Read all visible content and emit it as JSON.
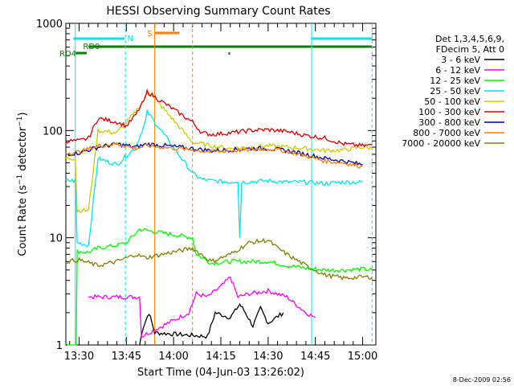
{
  "chart_data": {
    "type": "line",
    "title": "HESSI Observing Summary Count Rates",
    "xlabel": "Start Time (04-Jun-03 13:26:02)",
    "ylabel_parts": {
      "pre": "Count Rate (s",
      "sup1": "−1",
      "mid": " detector",
      "sup2": "−1",
      "post": ")"
    },
    "yscale": "log",
    "ylim": [
      1,
      1000
    ],
    "xlim_minutes": [
      13.43,
      15.07
    ],
    "x_ticks": [
      {
        "label": "13:30",
        "value": 13.5
      },
      {
        "label": "13:45",
        "value": 13.75
      },
      {
        "label": "14:00",
        "value": 14.0
      },
      {
        "label": "14:15",
        "value": 14.25
      },
      {
        "label": "14:30",
        "value": 14.5
      },
      {
        "label": "14:45",
        "value": 14.75
      },
      {
        "label": "15:00",
        "value": 15.0
      }
    ],
    "y_ticks": [
      {
        "label": "1",
        "value": 1
      },
      {
        "label": "10",
        "value": 10
      },
      {
        "label": "100",
        "value": 100
      },
      {
        "label": "1000",
        "value": 1000
      }
    ],
    "legend_header": [
      "Det 1,3,4,5,6,9,",
      "FDecim 5, Att 0"
    ],
    "legend_position": "right",
    "flags": [
      {
        "label": "N",
        "color": "#00e5ee"
      },
      {
        "label": "S",
        "color": "#ff7f00"
      },
      {
        "label": "RD0",
        "color": "#008000"
      },
      {
        "label": "RD4",
        "color": "#008000"
      }
    ],
    "timestamp": "8-Dec-2009 02:56",
    "series": [
      {
        "name": "3 - 6 keV",
        "color": "#000000",
        "points": [
          [
            13.82,
            1
          ],
          [
            13.84,
            1.5
          ],
          [
            13.87,
            2
          ],
          [
            13.9,
            1.3
          ],
          [
            14.18,
            1.2
          ],
          [
            14.22,
            2
          ],
          [
            14.3,
            1.8
          ],
          [
            14.35,
            2.4
          ],
          [
            14.38,
            2
          ],
          [
            14.42,
            1.5
          ],
          [
            14.46,
            2.2
          ],
          [
            14.5,
            1.6
          ],
          [
            14.58,
            2
          ]
        ]
      },
      {
        "name": "6 - 12 keV",
        "color": "#ff00ff",
        "points": [
          [
            13.55,
            2.8
          ],
          [
            13.65,
            2.8
          ],
          [
            13.75,
            2.8
          ],
          [
            13.82,
            2.8
          ],
          [
            13.83,
            1.2
          ],
          [
            14.08,
            2
          ],
          [
            14.12,
            3
          ],
          [
            14.18,
            2.8
          ],
          [
            14.2,
            3
          ],
          [
            14.25,
            3.5
          ],
          [
            14.3,
            4.3
          ],
          [
            14.34,
            2.8
          ],
          [
            14.4,
            3
          ],
          [
            14.5,
            3.2
          ],
          [
            14.6,
            2.8
          ],
          [
            14.7,
            2
          ],
          [
            14.75,
            1.8
          ]
        ]
      },
      {
        "name": "12 - 25 keV",
        "color": "#00ff00",
        "points": [
          [
            13.43,
            1
          ],
          [
            13.485,
            1
          ],
          [
            13.49,
            7.5
          ],
          [
            13.55,
            7.3
          ],
          [
            13.6,
            8
          ],
          [
            13.7,
            8.5
          ],
          [
            13.75,
            9
          ],
          [
            13.8,
            11
          ],
          [
            13.82,
            12
          ],
          [
            14.1,
            10
          ],
          [
            14.12,
            7
          ],
          [
            14.2,
            5.8
          ],
          [
            14.3,
            6
          ],
          [
            14.4,
            6
          ],
          [
            14.5,
            6
          ],
          [
            14.6,
            5.5
          ],
          [
            14.7,
            5.2
          ],
          [
            14.8,
            5
          ],
          [
            14.9,
            5
          ],
          [
            15.0,
            5.1
          ],
          [
            15.05,
            5
          ]
        ]
      },
      {
        "name": "25 - 50 keV",
        "color": "#00e5ee",
        "points": [
          [
            13.43,
            34
          ],
          [
            13.48,
            34
          ],
          [
            13.49,
            9
          ],
          [
            13.55,
            8.5
          ],
          [
            13.6,
            55
          ],
          [
            13.7,
            48
          ],
          [
            13.8,
            70
          ],
          [
            13.85,
            120
          ],
          [
            13.86,
            150
          ],
          [
            14.1,
            40
          ],
          [
            14.15,
            35
          ],
          [
            14.2,
            34
          ],
          [
            14.3,
            33
          ],
          [
            14.34,
            34
          ],
          [
            14.35,
            10
          ],
          [
            14.36,
            33
          ],
          [
            14.5,
            34
          ],
          [
            14.6,
            33
          ],
          [
            14.7,
            33
          ],
          [
            14.8,
            32
          ],
          [
            14.9,
            33
          ],
          [
            15.0,
            33
          ]
        ]
      },
      {
        "name": "50 - 100 keV",
        "color": "#cccc00",
        "points": [
          [
            13.43,
            55
          ],
          [
            13.48,
            55
          ],
          [
            13.49,
            18
          ],
          [
            13.55,
            18
          ],
          [
            13.6,
            100
          ],
          [
            13.7,
            95
          ],
          [
            13.8,
            150
          ],
          [
            13.85,
            200
          ],
          [
            13.86,
            240
          ],
          [
            14.1,
            78
          ],
          [
            14.2,
            72
          ],
          [
            14.3,
            68
          ],
          [
            14.4,
            70
          ],
          [
            14.5,
            72
          ],
          [
            14.6,
            70
          ],
          [
            14.7,
            68
          ],
          [
            14.8,
            65
          ],
          [
            14.9,
            66
          ],
          [
            15.0,
            70
          ],
          [
            15.05,
            68
          ]
        ]
      },
      {
        "name": "100 - 300 keV",
        "color": "#e00000",
        "points": [
          [
            13.43,
            80
          ],
          [
            13.5,
            80
          ],
          [
            13.55,
            85
          ],
          [
            13.6,
            130
          ],
          [
            13.7,
            120
          ],
          [
            13.75,
            110
          ],
          [
            13.8,
            140
          ],
          [
            13.85,
            200
          ],
          [
            13.86,
            230
          ],
          [
            14.1,
            120
          ],
          [
            14.15,
            95
          ],
          [
            14.2,
            92
          ],
          [
            14.3,
            95
          ],
          [
            14.4,
            100
          ],
          [
            14.5,
            102
          ],
          [
            14.6,
            98
          ],
          [
            14.7,
            90
          ],
          [
            14.8,
            85
          ],
          [
            14.9,
            75
          ],
          [
            15.0,
            72
          ],
          [
            15.05,
            73
          ]
        ]
      },
      {
        "name": "300 - 800 keV",
        "color": "#0000b0",
        "points": [
          [
            13.43,
            60
          ],
          [
            13.5,
            62
          ],
          [
            13.6,
            70
          ],
          [
            13.7,
            75
          ],
          [
            13.8,
            70
          ],
          [
            13.86,
            75
          ],
          [
            14.1,
            68
          ],
          [
            14.2,
            65
          ],
          [
            14.3,
            66
          ],
          [
            14.4,
            68
          ],
          [
            14.5,
            68
          ],
          [
            14.6,
            65
          ],
          [
            14.7,
            60
          ],
          [
            14.8,
            55
          ],
          [
            14.9,
            52
          ],
          [
            15.0,
            48
          ]
        ]
      },
      {
        "name": "800 - 7000 keV",
        "color": "#ff7f00",
        "points": [
          [
            13.43,
            62
          ],
          [
            13.5,
            63
          ],
          [
            13.6,
            72
          ],
          [
            13.7,
            75
          ],
          [
            13.8,
            68
          ],
          [
            13.86,
            72
          ],
          [
            14.1,
            66
          ],
          [
            14.2,
            63
          ],
          [
            14.3,
            65
          ],
          [
            14.4,
            66
          ],
          [
            14.5,
            68
          ],
          [
            14.6,
            64
          ],
          [
            14.7,
            58
          ],
          [
            14.8,
            52
          ],
          [
            14.9,
            50
          ],
          [
            15.0,
            46
          ]
        ]
      },
      {
        "name": "7000 - 20000 keV",
        "color": "#808000",
        "points": [
          [
            13.43,
            6
          ],
          [
            13.5,
            6.2
          ],
          [
            13.6,
            5.5
          ],
          [
            13.7,
            6
          ],
          [
            13.8,
            7
          ],
          [
            13.85,
            6.5
          ],
          [
            14.1,
            8
          ],
          [
            14.2,
            6
          ],
          [
            14.3,
            7
          ],
          [
            14.4,
            9
          ],
          [
            14.5,
            9.5
          ],
          [
            14.55,
            8
          ],
          [
            14.6,
            7
          ],
          [
            14.7,
            5.5
          ],
          [
            14.8,
            4.5
          ],
          [
            14.9,
            4.2
          ],
          [
            15.0,
            4.3
          ],
          [
            15.05,
            4.3
          ]
        ]
      }
    ]
  }
}
